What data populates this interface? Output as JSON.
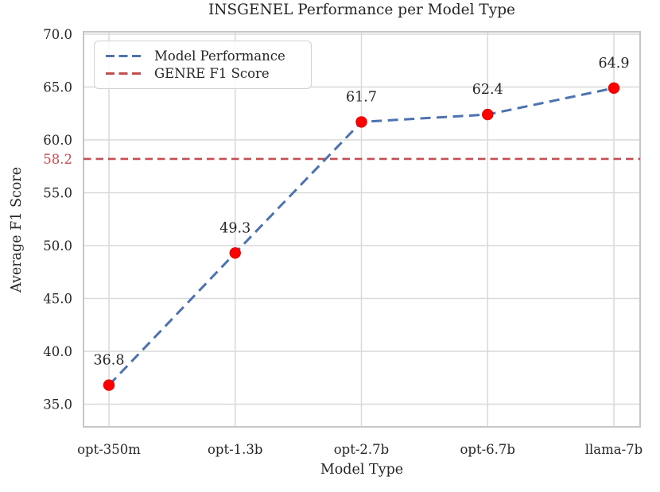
{
  "chart_data": {
    "type": "line",
    "title": "INSGENEL Performance per Model Type",
    "xlabel": "Model Type",
    "ylabel": "Average F1 Score",
    "categories": [
      "opt-350m",
      "opt-1.3b",
      "opt-2.7b",
      "opt-6.7b",
      "llama-7b"
    ],
    "series": [
      {
        "name": "Model Performance",
        "values": [
          36.8,
          49.3,
          61.7,
          62.4,
          64.9
        ],
        "data_labels": [
          "36.8",
          "49.3",
          "61.7",
          "62.4",
          "64.9"
        ],
        "line_color": "#4C72B0",
        "line_style": "dashed",
        "marker": "circle",
        "marker_color": "#FF0000"
      }
    ],
    "reference_line": {
      "name": "GENRE F1 Score",
      "value": 58.2,
      "tick_label": "58.2",
      "color": "#C44E52",
      "line_style": "dashed"
    },
    "ytick_values": [
      70,
      65,
      60,
      55,
      50,
      45,
      40,
      35
    ],
    "ytick_labels": [
      "70.0",
      "65.0",
      "60.0",
      "55.0",
      "50.0",
      "45.0",
      "40.0",
      "35.0"
    ],
    "ylim": [
      32.9,
      70.25
    ],
    "grid": true,
    "legend_position": "upper-left",
    "colors": {
      "text": "#262626",
      "grid": "#d9d9d9",
      "spine": "#c6c6c6",
      "background": "#ffffff"
    }
  }
}
